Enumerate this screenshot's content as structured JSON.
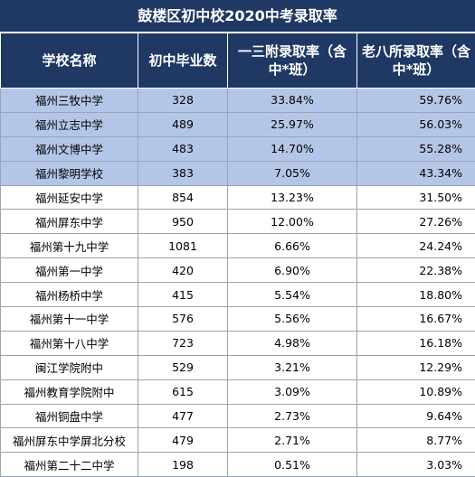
{
  "title": "鼓楼区初中校2020中考录取率",
  "headers": [
    "学校名称",
    "初中毕业数",
    "一三附录取率（含中*班）",
    "老八所录取率（含中*班）"
  ],
  "rows": [
    {
      "name": "福州三牧中学",
      "grads": "328",
      "rate13": "33.84%",
      "rate8": "59.76%",
      "highlight": true
    },
    {
      "name": "福州立志中学",
      "grads": "489",
      "rate13": "25.97%",
      "rate8": "56.03%",
      "highlight": true
    },
    {
      "name": "福州文博中学",
      "grads": "483",
      "rate13": "14.70%",
      "rate8": "55.28%",
      "highlight": true
    },
    {
      "name": "福州黎明学校",
      "grads": "383",
      "rate13": "7.05%",
      "rate8": "43.34%",
      "highlight": true
    },
    {
      "name": "福州延安中学",
      "grads": "854",
      "rate13": "13.23%",
      "rate8": "31.50%",
      "highlight": false
    },
    {
      "name": "福州屏东中学",
      "grads": "950",
      "rate13": "12.00%",
      "rate8": "27.26%",
      "highlight": false
    },
    {
      "name": "福州第十九中学",
      "grads": "1081",
      "rate13": "6.66%",
      "rate8": "24.24%",
      "highlight": false
    },
    {
      "name": "福州第一中学",
      "grads": "420",
      "rate13": "6.90%",
      "rate8": "22.38%",
      "highlight": false
    },
    {
      "name": "福州杨桥中学",
      "grads": "415",
      "rate13": "5.54%",
      "rate8": "18.80%",
      "highlight": false
    },
    {
      "name": "福州第十一中学",
      "grads": "576",
      "rate13": "5.56%",
      "rate8": "16.67%",
      "highlight": false
    },
    {
      "name": "福州第十八中学",
      "grads": "723",
      "rate13": "4.98%",
      "rate8": "16.18%",
      "highlight": false
    },
    {
      "name": "闽江学院附中",
      "grads": "529",
      "rate13": "3.21%",
      "rate8": "12.29%",
      "highlight": false
    },
    {
      "name": "福州教育学院附中",
      "grads": "615",
      "rate13": "3.09%",
      "rate8": "10.89%",
      "highlight": false
    },
    {
      "name": "福州铜盘中学",
      "grads": "477",
      "rate13": "2.73%",
      "rate8": "9.64%",
      "highlight": false
    },
    {
      "name": "福州屏东中学屏北分校",
      "grads": "479",
      "rate13": "2.71%",
      "rate8": "8.77%",
      "highlight": false
    },
    {
      "name": "福州第二十二中学",
      "grads": "198",
      "rate13": "0.51%",
      "rate8": "3.03%",
      "highlight": false
    }
  ],
  "colors": {
    "header_bg": "#1f3864",
    "highlight_bg": "#b4c6e7"
  }
}
